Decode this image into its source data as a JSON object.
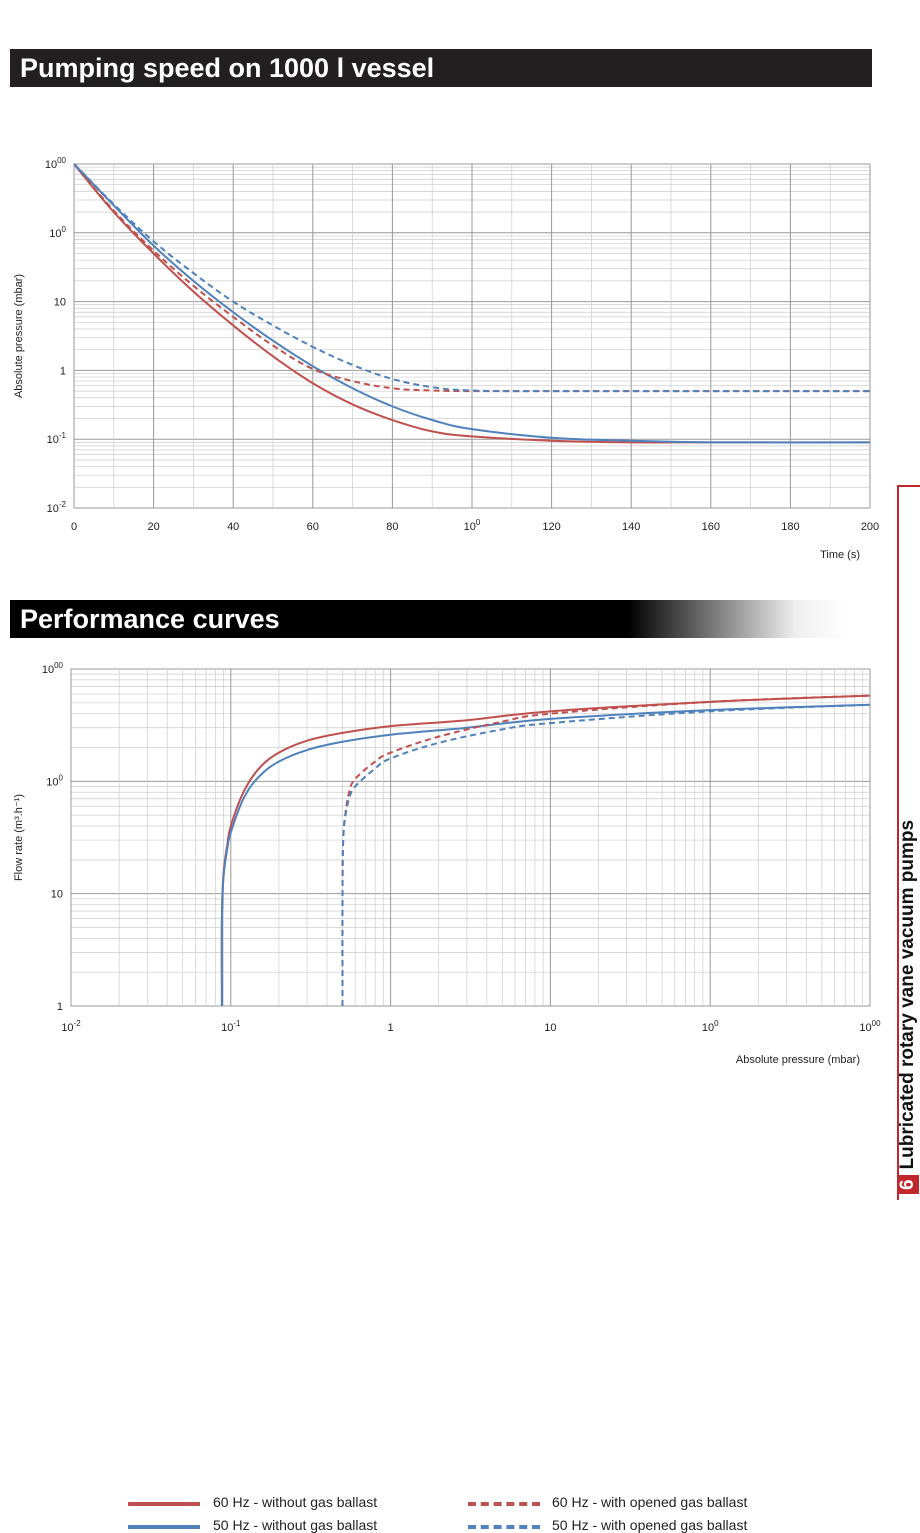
{
  "headings": {
    "pumping": "Pumping speed on 1000 l vessel",
    "performance": "Performance curves"
  },
  "sidebar": {
    "page_number": "6",
    "title": "Lubricated rotary vane vacuum pumps"
  },
  "legend": [
    {
      "label": "60 Hz - without gas ballast",
      "color": "#c0504d",
      "dashed": false
    },
    {
      "label": "50 Hz - without gas ballast",
      "color": "#4f81bd",
      "dashed": false
    },
    {
      "label": "60 Hz - with opened gas ballast",
      "color": "#c0504d",
      "dashed": true
    },
    {
      "label": "50 Hz - with opened gas ballast",
      "color": "#4f81bd",
      "dashed": true
    }
  ],
  "chart_data": [
    {
      "type": "line",
      "title": "Pumping speed on 1000 l vessel",
      "xlabel": "Time (s)",
      "ylabel": "Absolute pressure  (mbar)",
      "xlim": [
        0,
        200
      ],
      "ylim": [
        0.01,
        1000
      ],
      "yscale": "log",
      "grid": true,
      "x_ticks": [
        "0",
        "20",
        "40",
        "60",
        "80",
        "100",
        "120",
        "140",
        "160",
        "180",
        "200"
      ],
      "y_ticks": [
        "10-2",
        "10-1",
        "1",
        "10",
        "100",
        "1000"
      ],
      "series": [
        {
          "name": "60 Hz - without gas ballast",
          "x": [
            0,
            10,
            20,
            30,
            40,
            50,
            60,
            70,
            80,
            90,
            100,
            120,
            140,
            160,
            200
          ],
          "y": [
            1000,
            200,
            50,
            14,
            4.5,
            1.6,
            0.65,
            0.32,
            0.19,
            0.13,
            0.11,
            0.095,
            0.09,
            0.09,
            0.09
          ]
        },
        {
          "name": "50 Hz - without gas ballast",
          "x": [
            0,
            10,
            20,
            30,
            40,
            50,
            60,
            70,
            80,
            90,
            100,
            120,
            140,
            160,
            200
          ],
          "y": [
            1000,
            250,
            65,
            20,
            7,
            2.7,
            1.15,
            0.55,
            0.3,
            0.19,
            0.14,
            0.105,
            0.095,
            0.09,
            0.09
          ]
        },
        {
          "name": "60 Hz - with opened gas ballast",
          "x": [
            0,
            10,
            20,
            30,
            40,
            50,
            60,
            70,
            80,
            90,
            100,
            120,
            200
          ],
          "y": [
            1000,
            210,
            55,
            17,
            6,
            2.3,
            1.05,
            0.7,
            0.55,
            0.51,
            0.5,
            0.5,
            0.5
          ]
        },
        {
          "name": "50 Hz - with opened gas ballast",
          "x": [
            0,
            10,
            20,
            30,
            40,
            50,
            60,
            70,
            80,
            90,
            100,
            120,
            200
          ],
          "y": [
            1000,
            260,
            75,
            26,
            10,
            4.5,
            2.2,
            1.2,
            0.75,
            0.57,
            0.51,
            0.5,
            0.5
          ]
        }
      ]
    },
    {
      "type": "line",
      "title": "Performance curves",
      "xlabel": "Absolute pressure (mbar)",
      "ylabel": "Flow rate (m³.h⁻¹)",
      "xlim": [
        0.01,
        1000
      ],
      "ylim": [
        1,
        1000
      ],
      "xscale": "log",
      "yscale": "log",
      "grid": true,
      "x_ticks": [
        "10-2",
        "10-1",
        "1",
        "10",
        "100",
        "1000"
      ],
      "y_ticks": [
        "1",
        "10",
        "100",
        "1000"
      ],
      "series": [
        {
          "name": "60 Hz - without gas ballast",
          "x": [
            0.088,
            0.088,
            0.09,
            0.095,
            0.1,
            0.12,
            0.15,
            0.2,
            0.3,
            0.5,
            1,
            3,
            10,
            100,
            1000
          ],
          "y": [
            1,
            6,
            15,
            27,
            40,
            80,
            130,
            180,
            230,
            270,
            310,
            350,
            420,
            510,
            580
          ]
        },
        {
          "name": "50 Hz - without gas ballast",
          "x": [
            0.088,
            0.088,
            0.09,
            0.095,
            0.1,
            0.12,
            0.15,
            0.2,
            0.3,
            0.5,
            1,
            3,
            10,
            100,
            1000
          ],
          "y": [
            1,
            6,
            14,
            25,
            35,
            70,
            110,
            150,
            190,
            225,
            260,
            300,
            360,
            430,
            480
          ]
        },
        {
          "name": "60 Hz - with opened gas ballast",
          "x": [
            0.5,
            0.5,
            0.505,
            0.52,
            0.55,
            0.6,
            0.8,
            1,
            2,
            5,
            10,
            100,
            1000
          ],
          "y": [
            1,
            10,
            30,
            50,
            80,
            105,
            150,
            180,
            250,
            340,
            400,
            510,
            580
          ]
        },
        {
          "name": "50 Hz - with opened gas ballast",
          "x": [
            0.5,
            0.5,
            0.505,
            0.52,
            0.55,
            0.6,
            0.8,
            1,
            2,
            5,
            10,
            100,
            1000
          ],
          "y": [
            1,
            10,
            30,
            48,
            70,
            90,
            130,
            160,
            220,
            290,
            330,
            420,
            480
          ]
        }
      ]
    }
  ]
}
